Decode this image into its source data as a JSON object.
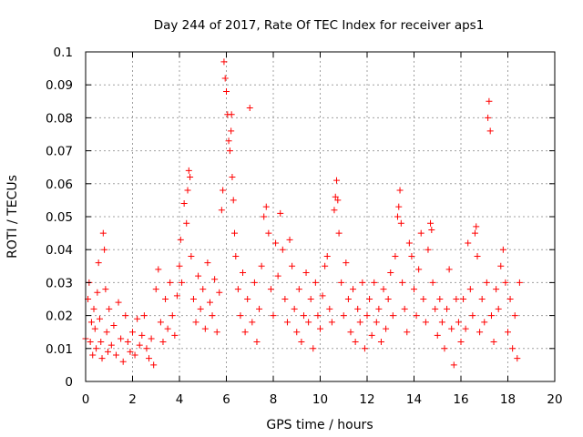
{
  "chart_data": {
    "type": "scatter",
    "title": "Day 244 of 2017, Rate Of TEC Index for receiver aps1",
    "xlabel": "GPS time / hours",
    "ylabel": "ROTI / TECUs",
    "xlim": [
      0,
      20
    ],
    "ylim": [
      0,
      0.1
    ],
    "xticks": [
      "0",
      "2",
      "4",
      "6",
      "8",
      "10",
      "12",
      "14",
      "16",
      "18",
      "20"
    ],
    "yticks": [
      "0",
      "0.01",
      "0.02",
      "0.03",
      "0.04",
      "0.05",
      "0.06",
      "0.07",
      "0.08",
      "0.09",
      "0.1"
    ],
    "grid": true,
    "marker": "plus",
    "color": "#ff0000",
    "series": [
      {
        "name": "aps1",
        "points": [
          [
            0.0,
            0.013
          ],
          [
            0.1,
            0.025
          ],
          [
            0.15,
            0.03
          ],
          [
            0.2,
            0.012
          ],
          [
            0.25,
            0.018
          ],
          [
            0.3,
            0.008
          ],
          [
            0.35,
            0.022
          ],
          [
            0.4,
            0.016
          ],
          [
            0.45,
            0.01
          ],
          [
            0.5,
            0.027
          ],
          [
            0.55,
            0.036
          ],
          [
            0.6,
            0.019
          ],
          [
            0.65,
            0.012
          ],
          [
            0.7,
            0.007
          ],
          [
            0.75,
            0.045
          ],
          [
            0.8,
            0.04
          ],
          [
            0.85,
            0.028
          ],
          [
            0.9,
            0.015
          ],
          [
            0.95,
            0.009
          ],
          [
            1.0,
            0.022
          ],
          [
            1.1,
            0.011
          ],
          [
            1.2,
            0.017
          ],
          [
            1.3,
            0.008
          ],
          [
            1.4,
            0.024
          ],
          [
            1.5,
            0.013
          ],
          [
            1.6,
            0.006
          ],
          [
            1.7,
            0.02
          ],
          [
            1.8,
            0.012
          ],
          [
            1.9,
            0.009
          ],
          [
            2.0,
            0.015
          ],
          [
            2.1,
            0.008
          ],
          [
            2.2,
            0.019
          ],
          [
            2.3,
            0.011
          ],
          [
            2.4,
            0.014
          ],
          [
            2.5,
            0.02
          ],
          [
            2.6,
            0.01
          ],
          [
            2.7,
            0.007
          ],
          [
            2.8,
            0.013
          ],
          [
            2.9,
            0.005
          ],
          [
            3.0,
            0.028
          ],
          [
            3.1,
            0.034
          ],
          [
            3.2,
            0.018
          ],
          [
            3.3,
            0.012
          ],
          [
            3.4,
            0.025
          ],
          [
            3.5,
            0.016
          ],
          [
            3.6,
            0.03
          ],
          [
            3.7,
            0.02
          ],
          [
            3.8,
            0.014
          ],
          [
            3.9,
            0.026
          ],
          [
            4.0,
            0.035
          ],
          [
            4.05,
            0.043
          ],
          [
            4.1,
            0.03
          ],
          [
            4.2,
            0.054
          ],
          [
            4.3,
            0.048
          ],
          [
            4.35,
            0.058
          ],
          [
            4.4,
            0.064
          ],
          [
            4.45,
            0.062
          ],
          [
            4.5,
            0.038
          ],
          [
            4.6,
            0.025
          ],
          [
            4.7,
            0.018
          ],
          [
            4.8,
            0.032
          ],
          [
            4.9,
            0.022
          ],
          [
            5.0,
            0.028
          ],
          [
            5.1,
            0.016
          ],
          [
            5.2,
            0.036
          ],
          [
            5.3,
            0.024
          ],
          [
            5.4,
            0.02
          ],
          [
            5.5,
            0.031
          ],
          [
            5.6,
            0.015
          ],
          [
            5.7,
            0.027
          ],
          [
            5.8,
            0.052
          ],
          [
            5.85,
            0.058
          ],
          [
            5.9,
            0.097
          ],
          [
            5.95,
            0.092
          ],
          [
            6.0,
            0.088
          ],
          [
            6.05,
            0.081
          ],
          [
            6.1,
            0.073
          ],
          [
            6.15,
            0.07
          ],
          [
            6.2,
            0.076
          ],
          [
            6.22,
            0.081
          ],
          [
            6.25,
            0.062
          ],
          [
            6.3,
            0.055
          ],
          [
            6.35,
            0.045
          ],
          [
            6.4,
            0.038
          ],
          [
            6.5,
            0.028
          ],
          [
            6.6,
            0.02
          ],
          [
            6.7,
            0.033
          ],
          [
            6.8,
            0.015
          ],
          [
            6.9,
            0.025
          ],
          [
            7.0,
            0.083
          ],
          [
            7.1,
            0.018
          ],
          [
            7.2,
            0.03
          ],
          [
            7.3,
            0.012
          ],
          [
            7.4,
            0.022
          ],
          [
            7.5,
            0.035
          ],
          [
            7.6,
            0.05
          ],
          [
            7.7,
            0.053
          ],
          [
            7.8,
            0.045
          ],
          [
            7.9,
            0.028
          ],
          [
            8.0,
            0.02
          ],
          [
            8.1,
            0.042
          ],
          [
            8.2,
            0.032
          ],
          [
            8.3,
            0.051
          ],
          [
            8.4,
            0.04
          ],
          [
            8.5,
            0.025
          ],
          [
            8.6,
            0.018
          ],
          [
            8.7,
            0.043
          ],
          [
            8.8,
            0.035
          ],
          [
            8.9,
            0.022
          ],
          [
            9.0,
            0.015
          ],
          [
            9.1,
            0.028
          ],
          [
            9.2,
            0.012
          ],
          [
            9.3,
            0.02
          ],
          [
            9.4,
            0.033
          ],
          [
            9.5,
            0.018
          ],
          [
            9.6,
            0.025
          ],
          [
            9.7,
            0.01
          ],
          [
            9.8,
            0.03
          ],
          [
            9.9,
            0.02
          ],
          [
            10.0,
            0.016
          ],
          [
            10.1,
            0.026
          ],
          [
            10.2,
            0.035
          ],
          [
            10.3,
            0.038
          ],
          [
            10.4,
            0.022
          ],
          [
            10.5,
            0.018
          ],
          [
            10.6,
            0.052
          ],
          [
            10.65,
            0.056
          ],
          [
            10.7,
            0.061
          ],
          [
            10.75,
            0.055
          ],
          [
            10.8,
            0.045
          ],
          [
            10.9,
            0.03
          ],
          [
            11.0,
            0.02
          ],
          [
            11.1,
            0.036
          ],
          [
            11.2,
            0.025
          ],
          [
            11.3,
            0.015
          ],
          [
            11.4,
            0.028
          ],
          [
            11.5,
            0.012
          ],
          [
            11.6,
            0.022
          ],
          [
            11.7,
            0.018
          ],
          [
            11.8,
            0.03
          ],
          [
            11.9,
            0.01
          ],
          [
            12.0,
            0.02
          ],
          [
            12.1,
            0.025
          ],
          [
            12.2,
            0.014
          ],
          [
            12.3,
            0.03
          ],
          [
            12.4,
            0.018
          ],
          [
            12.5,
            0.022
          ],
          [
            12.6,
            0.012
          ],
          [
            12.7,
            0.028
          ],
          [
            12.8,
            0.016
          ],
          [
            12.9,
            0.025
          ],
          [
            13.0,
            0.033
          ],
          [
            13.1,
            0.02
          ],
          [
            13.2,
            0.038
          ],
          [
            13.3,
            0.05
          ],
          [
            13.35,
            0.053
          ],
          [
            13.4,
            0.058
          ],
          [
            13.45,
            0.048
          ],
          [
            13.5,
            0.03
          ],
          [
            13.6,
            0.022
          ],
          [
            13.7,
            0.015
          ],
          [
            13.8,
            0.042
          ],
          [
            13.9,
            0.038
          ],
          [
            14.0,
            0.028
          ],
          [
            14.1,
            0.02
          ],
          [
            14.2,
            0.034
          ],
          [
            14.3,
            0.045
          ],
          [
            14.4,
            0.025
          ],
          [
            14.5,
            0.018
          ],
          [
            14.6,
            0.04
          ],
          [
            14.7,
            0.048
          ],
          [
            14.75,
            0.046
          ],
          [
            14.8,
            0.03
          ],
          [
            14.9,
            0.022
          ],
          [
            15.0,
            0.014
          ],
          [
            15.1,
            0.025
          ],
          [
            15.2,
            0.018
          ],
          [
            15.3,
            0.01
          ],
          [
            15.4,
            0.022
          ],
          [
            15.5,
            0.034
          ],
          [
            15.6,
            0.016
          ],
          [
            15.7,
            0.005
          ],
          [
            15.8,
            0.025
          ],
          [
            15.9,
            0.018
          ],
          [
            16.0,
            0.012
          ],
          [
            16.1,
            0.025
          ],
          [
            16.2,
            0.016
          ],
          [
            16.3,
            0.042
          ],
          [
            16.4,
            0.028
          ],
          [
            16.5,
            0.02
          ],
          [
            16.6,
            0.045
          ],
          [
            16.65,
            0.047
          ],
          [
            16.7,
            0.038
          ],
          [
            16.8,
            0.015
          ],
          [
            16.9,
            0.025
          ],
          [
            17.0,
            0.018
          ],
          [
            17.1,
            0.03
          ],
          [
            17.15,
            0.08
          ],
          [
            17.2,
            0.085
          ],
          [
            17.25,
            0.076
          ],
          [
            17.3,
            0.02
          ],
          [
            17.4,
            0.012
          ],
          [
            17.5,
            0.028
          ],
          [
            17.6,
            0.022
          ],
          [
            17.7,
            0.035
          ],
          [
            17.8,
            0.04
          ],
          [
            17.9,
            0.03
          ],
          [
            18.0,
            0.015
          ],
          [
            18.1,
            0.025
          ],
          [
            18.2,
            0.01
          ],
          [
            18.3,
            0.02
          ],
          [
            18.4,
            0.007
          ],
          [
            18.5,
            0.03
          ]
        ]
      }
    ]
  }
}
